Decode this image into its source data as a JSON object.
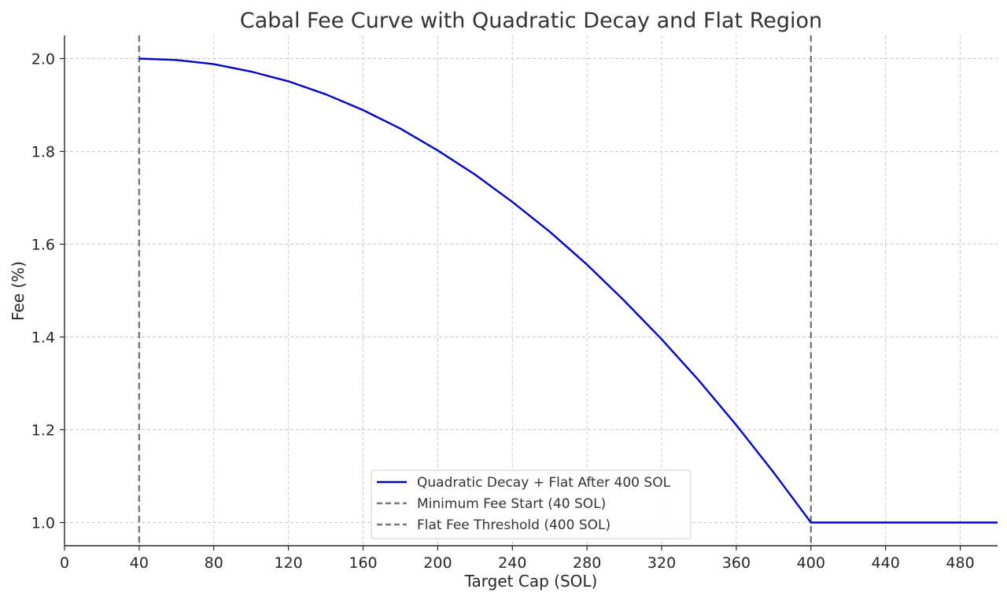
{
  "chart_data": {
    "type": "line",
    "title": "Cabal Fee Curve with Quadratic Decay and Flat Region",
    "xlabel": "Target Cap (SOL)",
    "ylabel": "Fee (%)",
    "xlim": [
      0,
      500
    ],
    "ylim": [
      0.95,
      2.05
    ],
    "xticks": [
      0,
      40,
      80,
      120,
      160,
      200,
      240,
      280,
      320,
      360,
      400,
      440,
      480
    ],
    "yticks": [
      1.0,
      1.2,
      1.4,
      1.6,
      1.8,
      2.0
    ],
    "grid": true,
    "legend_position": "bottom-center",
    "series": [
      {
        "name": "Quadratic Decay + Flat After 400 SOL",
        "color": "#0000cc",
        "style": "solid",
        "x": [
          40,
          60,
          80,
          100,
          120,
          140,
          160,
          180,
          200,
          220,
          240,
          260,
          280,
          300,
          320,
          340,
          360,
          380,
          400,
          420,
          440,
          460,
          480,
          500
        ],
        "y": [
          2.0,
          1.997,
          1.988,
          1.972,
          1.951,
          1.923,
          1.889,
          1.849,
          1.802,
          1.75,
          1.691,
          1.627,
          1.556,
          1.478,
          1.395,
          1.306,
          1.21,
          1.108,
          1.0,
          1.0,
          1.0,
          1.0,
          1.0,
          1.0
        ]
      },
      {
        "name": "Minimum Fee Start (40 SOL)",
        "color": "#777777",
        "style": "dashed",
        "vline_x": 40
      },
      {
        "name": "Flat Fee Threshold (400 SOL)",
        "color": "#777777",
        "style": "dashed",
        "vline_x": 400
      }
    ]
  }
}
